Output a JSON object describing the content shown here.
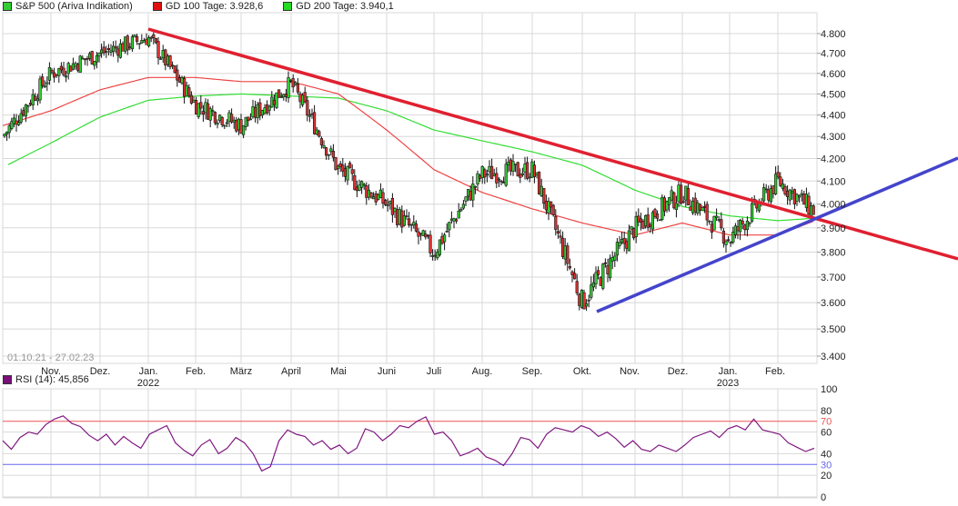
{
  "legend": {
    "main": {
      "label": "S&P 500 (Ariva Indikation)",
      "color": "#33cc33"
    },
    "gd100": {
      "label": "GD 100 Tage: 3.928,6",
      "color": "#e01010"
    },
    "gd200": {
      "label": "GD 200 Tage: 3.940,1",
      "color": "#22dd22"
    }
  },
  "range_label": "01.10.21 - 27.02.23",
  "rsi_legend": {
    "label": "RSI (14): 45,856",
    "color": "#7a0f7a"
  },
  "colors": {
    "up_candle": "#33cc33",
    "down_candle": "#dd3333",
    "gd100_line": "#ee4444",
    "gd200_line": "#33dd33",
    "resistance_trendline": "#e02030",
    "support_trendline": "#4444cc",
    "rsi_line": "#801880",
    "rsi_overbought": "#ee5555",
    "rsi_oversold": "#6666ee",
    "grid": "#d8d8d8"
  },
  "chart_data": [
    {
      "type": "candlestick",
      "title": "S&P 500 (Ariva Indikation)",
      "date_range": "01.10.21 - 27.02.23",
      "scale": "log",
      "ylim": [
        3400,
        4850
      ],
      "y_ticks": [
        "4.800",
        "4.700",
        "4.600",
        "4.500",
        "4.400",
        "4.300",
        "4.200",
        "4.100",
        "4.000",
        "3.900",
        "3.800",
        "3.700",
        "3.600",
        "3.500",
        "3.400"
      ],
      "x_ticks": [
        {
          "label": "Nov.",
          "sub": ""
        },
        {
          "label": "Dez.",
          "sub": ""
        },
        {
          "label": "Jan.",
          "sub": "2022"
        },
        {
          "label": "Feb.",
          "sub": ""
        },
        {
          "label": "März",
          "sub": ""
        },
        {
          "label": "April",
          "sub": ""
        },
        {
          "label": "Mai",
          "sub": ""
        },
        {
          "label": "Juni",
          "sub": ""
        },
        {
          "label": "Juli",
          "sub": ""
        },
        {
          "label": "Aug.",
          "sub": ""
        },
        {
          "label": "Sep.",
          "sub": ""
        },
        {
          "label": "Okt.",
          "sub": ""
        },
        {
          "label": "Nov.",
          "sub": ""
        },
        {
          "label": "Dez.",
          "sub": ""
        },
        {
          "label": "Jan.",
          "sub": "2023"
        },
        {
          "label": "Feb.",
          "sub": ""
        }
      ],
      "price_path": {
        "months": [
          "Okt 21",
          "Nov 21",
          "Dez 21",
          "Jan 22",
          "Feb 22",
          "Mär 22",
          "Apr 22",
          "Mai 22",
          "Jun 22",
          "Jul 22",
          "Aug 22",
          "Sep 22",
          "Okt 22",
          "Nov 22",
          "Dez 22",
          "Jan 23",
          "Feb 23",
          "End"
        ],
        "approx_close": [
          4300,
          4600,
          4700,
          4780,
          4450,
          4350,
          4550,
          4150,
          4000,
          3800,
          4130,
          4150,
          3600,
          3900,
          4050,
          3850,
          4100,
          3970
        ]
      },
      "series": [
        {
          "name": "GD 100 Tage",
          "last": 3928.6,
          "approx": [
            4350,
            4420,
            4520,
            4580,
            4580,
            4560,
            4560,
            4500,
            4330,
            4150,
            4050,
            3980,
            3920,
            3870,
            3920,
            3870,
            3870,
            3928.6
          ]
        },
        {
          "name": "GD 200 Tage",
          "last": 3940.1,
          "approx": [
            4160,
            4270,
            4390,
            4470,
            4490,
            4500,
            4490,
            4480,
            4420,
            4330,
            4280,
            4230,
            4170,
            4060,
            3990,
            3950,
            3930,
            3940.1
          ]
        }
      ],
      "annotations": [
        {
          "type": "trendline",
          "name": "resistance",
          "from": {
            "date": "Jan 22",
            "value": 4820
          },
          "to": {
            "date": "beyond Feb 23",
            "value": 3770
          },
          "color": "#e02030"
        },
        {
          "type": "trendline",
          "name": "support",
          "from": {
            "date": "Okt 22",
            "value": 3570
          },
          "to": {
            "date": "beyond Feb 23",
            "value": 4210
          },
          "color": "#4444cc"
        }
      ]
    },
    {
      "type": "line",
      "title": "RSI (14)",
      "last": 45.856,
      "ylim": [
        0,
        100
      ],
      "y_ticks": [
        "100",
        "80",
        "70",
        "60",
        "40",
        "30",
        "20",
        "0"
      ],
      "thresholds": {
        "overbought": 70,
        "oversold": 30
      },
      "approx_values": [
        52,
        44,
        55,
        60,
        58,
        67,
        72,
        75,
        68,
        65,
        57,
        52,
        58,
        48,
        56,
        50,
        45,
        58,
        62,
        66,
        50,
        43,
        38,
        48,
        53,
        40,
        45,
        55,
        50,
        40,
        24,
        28,
        52,
        62,
        58,
        56,
        48,
        52,
        44,
        48,
        40,
        45,
        63,
        60,
        52,
        58,
        66,
        64,
        70,
        74,
        58,
        60,
        52,
        38,
        41,
        45,
        37,
        34,
        29,
        40,
        55,
        53,
        45,
        58,
        64,
        62,
        60,
        66,
        63,
        56,
        60,
        54,
        46,
        52,
        44,
        42,
        48,
        45,
        42,
        48,
        55,
        58,
        61,
        55,
        63,
        66,
        62,
        72,
        62,
        60,
        58,
        50,
        46,
        42,
        45
      ]
    }
  ]
}
